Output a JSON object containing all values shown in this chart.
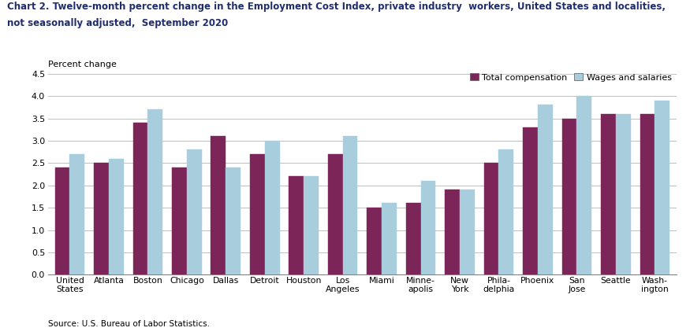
{
  "title_line1": "Chart 2. Twelve-month percent change in the Employment Cost Index, private industry  workers, United States and localities,",
  "title_line2": "not seasonally adjusted,  September 2020",
  "percent_change_label": "Percent change",
  "source": "Source: U.S. Bureau of Labor Statistics.",
  "ylim": [
    0.0,
    4.5
  ],
  "yticks": [
    0.0,
    0.5,
    1.0,
    1.5,
    2.0,
    2.5,
    3.0,
    3.5,
    4.0,
    4.5
  ],
  "categories": [
    "United\nStates",
    "Atlanta",
    "Boston",
    "Chicago",
    "Dallas",
    "Detroit",
    "Houston",
    "Los\nAngeles",
    "Miami",
    "Minne-\napolis",
    "New\nYork",
    "Phila-\ndelphia",
    "Phoenix",
    "San\nJose",
    "Seattle",
    "Wash-\nington"
  ],
  "total_compensation": [
    2.4,
    2.5,
    3.4,
    2.4,
    3.1,
    2.7,
    2.2,
    2.7,
    1.5,
    1.6,
    1.9,
    2.5,
    3.3,
    3.5,
    3.6,
    3.6
  ],
  "wages_and_salaries": [
    2.7,
    2.6,
    3.7,
    2.8,
    2.4,
    3.0,
    2.2,
    3.1,
    1.6,
    2.1,
    1.9,
    2.8,
    3.8,
    4.0,
    3.6,
    3.9
  ],
  "color_total": "#7B2558",
  "color_wages": "#A8CEDE",
  "legend_total": "Total compensation",
  "legend_wages": "Wages and salaries",
  "bar_width": 0.38,
  "title_fontsize": 8.5,
  "tick_fontsize": 7.8,
  "legend_fontsize": 8.0,
  "title_color": "#1F2D6E",
  "label_fontsize": 8.0
}
